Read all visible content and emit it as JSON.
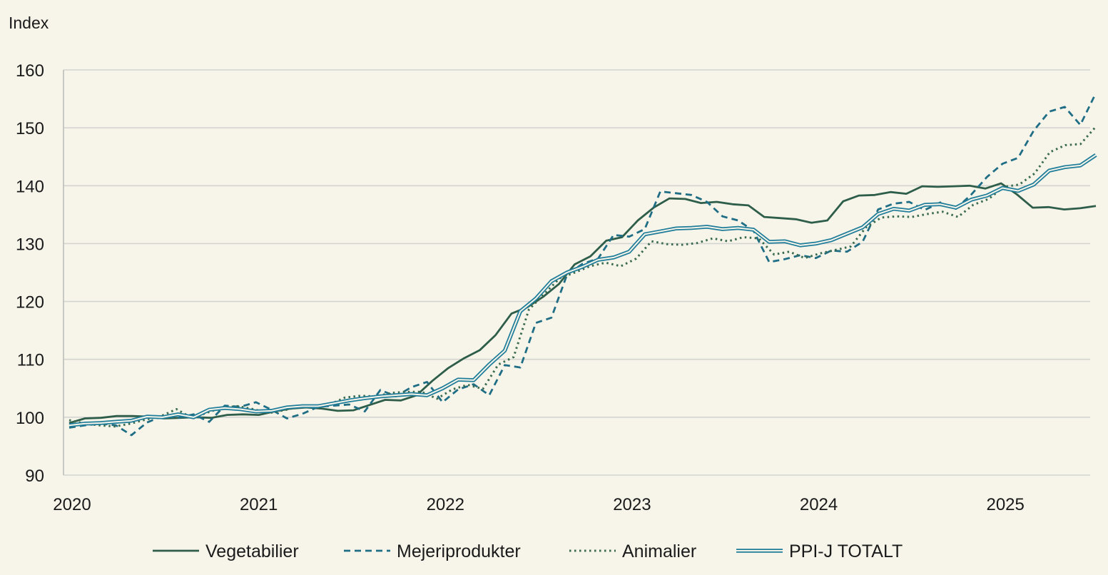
{
  "chart_data": {
    "type": "line",
    "title": "",
    "ylabel": "Index",
    "xlabel": "",
    "ylim": [
      90,
      160
    ],
    "yticks": [
      90,
      100,
      110,
      120,
      130,
      140,
      150,
      160
    ],
    "xlim": [
      2020,
      2025.5
    ],
    "xticks": [
      "2020",
      "2021",
      "2022",
      "2023",
      "2024",
      "2025"
    ],
    "grid": "horizontal",
    "legend_position": "bottom",
    "series": [
      {
        "name": "Vegetabilier",
        "style": "solid",
        "color": "#2e5e4a",
        "values": [
          99.0,
          99.8,
          99.9,
          100.2,
          100.2,
          100.1,
          99.8,
          99.9,
          100.0,
          99.9,
          100.4,
          100.5,
          100.4,
          101.0,
          101.5,
          101.7,
          101.5,
          101.1,
          101.2,
          102.1,
          103.0,
          102.9,
          103.8,
          106.3,
          108.5,
          110.2,
          111.6,
          114.2,
          117.9,
          119.0,
          120.8,
          123.0,
          126.4,
          127.8,
          130.5,
          131.1,
          134.0,
          136.2,
          137.8,
          137.7,
          137.0,
          137.2,
          136.8,
          136.6,
          134.6,
          134.4,
          134.2,
          133.6,
          134.0,
          137.3,
          138.3,
          138.4,
          138.9,
          138.6,
          139.9,
          139.8,
          139.9,
          140.0,
          139.5,
          140.4,
          138.5,
          136.2,
          136.3,
          135.9,
          136.1,
          136.5
        ]
      },
      {
        "name": "Mejeriprodukter",
        "style": "dashed",
        "color": "#1f6e85",
        "values": [
          98.2,
          98.6,
          98.9,
          98.6,
          96.9,
          99.1,
          100.2,
          99.9,
          100.5,
          99.2,
          102.0,
          101.8,
          102.6,
          101.3,
          99.8,
          100.6,
          101.8,
          102.0,
          102.2,
          101.0,
          104.7,
          103.6,
          105.2,
          106.1,
          102.6,
          104.8,
          105.7,
          103.8,
          109.0,
          108.6,
          116.3,
          117.2,
          124.6,
          126.5,
          127.4,
          131.5,
          131.2,
          132.5,
          139.0,
          138.7,
          138.4,
          137.2,
          134.7,
          134.0,
          132.2,
          126.8,
          127.3,
          128.0,
          127.5,
          128.8,
          128.6,
          130.3,
          135.9,
          136.9,
          137.2,
          135.8,
          137.1,
          136.0,
          138.5,
          141.5,
          143.8,
          144.8,
          149.5,
          152.8,
          153.6,
          150.5,
          156.0
        ]
      },
      {
        "name": "Animalier",
        "style": "dotted",
        "color": "#3a6b50",
        "values": [
          99.5,
          98.9,
          98.6,
          98.4,
          98.9,
          99.6,
          100.2,
          101.4,
          99.9,
          100.8,
          101.7,
          101.9,
          101.4,
          100.7,
          101.2,
          101.8,
          101.9,
          102.2,
          103.4,
          103.7,
          103.6,
          104.2,
          104.4,
          104.4,
          103.2,
          104.8,
          105.6,
          104.9,
          109.1,
          110.4,
          118.6,
          121.3,
          124.0,
          125.0,
          126.1,
          126.7,
          126.1,
          127.4,
          130.4,
          129.9,
          129.8,
          130.1,
          130.9,
          130.4,
          131.1,
          130.9,
          128.1,
          128.6,
          127.5,
          128.3,
          128.9,
          129.5,
          132.8,
          134.5,
          134.7,
          134.6,
          135.1,
          135.5,
          134.6,
          136.7,
          137.7,
          139.8,
          140.2,
          142.1,
          145.8,
          147.0,
          147.2,
          150.2
        ]
      },
      {
        "name": "PPI-J TOTALT",
        "style": "double",
        "color": "#1f7d9a",
        "values": [
          98.6,
          98.9,
          99.0,
          99.2,
          99.4,
          100.1,
          100.0,
          100.5,
          100.0,
          101.3,
          101.6,
          101.4,
          101.0,
          101.1,
          101.7,
          101.9,
          101.9,
          102.4,
          102.9,
          103.3,
          103.6,
          103.8,
          104.0,
          103.8,
          105.0,
          106.5,
          106.4,
          109.1,
          111.5,
          118.3,
          120.5,
          123.5,
          125.0,
          126.0,
          127.2,
          127.6,
          128.6,
          131.6,
          132.1,
          132.6,
          132.7,
          132.9,
          132.5,
          132.7,
          132.4,
          130.3,
          130.4,
          129.7,
          130.0,
          130.6,
          131.7,
          132.8,
          135.1,
          136.0,
          135.7,
          136.7,
          136.8,
          136.2,
          137.6,
          138.3,
          139.6,
          139.1,
          140.2,
          142.6,
          143.2,
          143.5,
          145.3
        ]
      }
    ]
  }
}
